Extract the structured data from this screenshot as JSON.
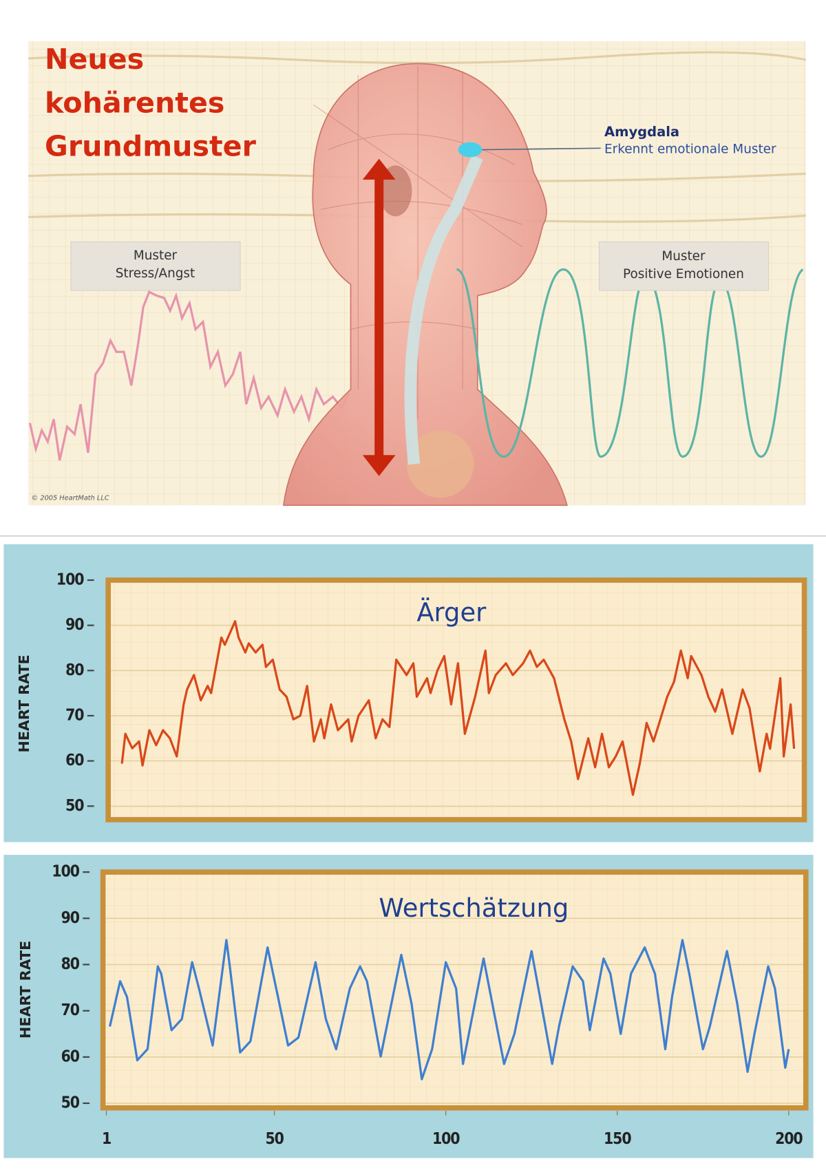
{
  "illustration": {
    "title_lines": [
      "Neues",
      "kohärentes",
      "Grundmuster"
    ],
    "amygdala": {
      "label": "Amygdala",
      "description": "Erkennt emotionale Muster"
    },
    "stress_box": [
      "Muster",
      "Stress/Angst"
    ],
    "positive_box": [
      "Muster",
      "Positive Emotionen"
    ],
    "copyright": "© 2005 HeartMath LLC"
  },
  "chart_data": [
    {
      "type": "line",
      "title": "Ärger",
      "y_label": "HEART RATE",
      "color": "#d9481a",
      "xlim": [
        0,
        203
      ],
      "ylim": [
        47,
        100
      ],
      "yticks": [
        100,
        90,
        80,
        70,
        60,
        50
      ],
      "grid": true,
      "x": [
        4,
        5,
        7,
        9,
        10,
        12,
        14,
        16,
        18,
        20,
        22,
        23,
        25,
        27,
        29,
        30,
        33,
        34,
        37,
        38,
        40,
        41,
        43,
        45,
        46,
        48,
        50,
        52,
        54,
        56,
        58,
        60,
        62,
        63,
        65,
        67,
        70,
        71,
        73,
        76,
        78,
        80,
        82,
        84,
        87,
        89,
        90,
        93,
        94,
        96,
        98,
        100,
        102,
        104,
        107,
        110,
        111,
        113,
        116,
        118,
        121,
        123,
        125,
        127,
        130,
        133,
        135,
        137,
        140,
        142,
        144,
        146,
        148,
        150,
        153,
        155,
        157,
        159,
        161,
        163,
        165,
        167,
        169,
        170,
        173,
        175,
        177,
        179,
        182,
        185,
        187,
        190,
        192,
        193,
        196,
        197,
        199,
        200
      ],
      "values": [
        59.4,
        66,
        62.8,
        64.3,
        59,
        66.8,
        63.5,
        66.8,
        65,
        61,
        72.5,
        75.8,
        79,
        73.4,
        76.6,
        75,
        87.3,
        85.7,
        90.9,
        87.3,
        84,
        86,
        84,
        85.7,
        80.8,
        82.4,
        75.8,
        74.2,
        69.2,
        70,
        76.6,
        64.3,
        69.2,
        65,
        72.5,
        66.8,
        69.2,
        64.3,
        70,
        73.4,
        65,
        69.2,
        67.5,
        82.4,
        79,
        81.6,
        74.2,
        78.3,
        75,
        80,
        83.2,
        72.5,
        81.6,
        66,
        74.2,
        84.4,
        75,
        79,
        81.6,
        79,
        81.6,
        84.4,
        80.8,
        82.4,
        78.3,
        69.2,
        64.3,
        56,
        65,
        58.6,
        66,
        58.6,
        61,
        64.3,
        52.5,
        59.4,
        68.4,
        64.3,
        69.2,
        74.2,
        77.5,
        84.4,
        78.3,
        83.2,
        79,
        74.2,
        70.9,
        75.8,
        66,
        75.8,
        71.7,
        57.7,
        66,
        62.7,
        78.3,
        61,
        72.5,
        62.7
      ]
    },
    {
      "type": "line",
      "title": "Wertschätzung",
      "y_label": "HEART RATE",
      "color": "#3f7fd0",
      "xlim": [
        0,
        205
      ],
      "ylim": [
        49,
        100
      ],
      "yticks": [
        100,
        90,
        80,
        70,
        60,
        50
      ],
      "xticks": [
        1,
        50,
        100,
        150,
        200
      ],
      "grid": true,
      "x": [
        2,
        5,
        7,
        10,
        13,
        16,
        17,
        20,
        23,
        26,
        28,
        32,
        36,
        37,
        40,
        43,
        48,
        51,
        54,
        57,
        62,
        65,
        68,
        72,
        75,
        77,
        81,
        87,
        90,
        93,
        96,
        100,
        103,
        105,
        111,
        114,
        117,
        120,
        125,
        127,
        131,
        133,
        137,
        140,
        142,
        146,
        148,
        151,
        154,
        158,
        161,
        164,
        166,
        169,
        171,
        175,
        177,
        182,
        185,
        188,
        190,
        194,
        196,
        199,
        200
      ],
      "values": [
        66.6,
        76.4,
        73,
        59.3,
        61.7,
        79.6,
        78,
        65.8,
        68.2,
        80.5,
        74.8,
        62.5,
        85.3,
        79.6,
        61,
        63.4,
        83.7,
        73.1,
        62.5,
        64.2,
        80.5,
        68.2,
        61.7,
        74.8,
        79.6,
        76.4,
        60.1,
        82.1,
        71.5,
        55.2,
        61.7,
        80.5,
        74.8,
        58.5,
        81.3,
        69.9,
        58.5,
        65,
        82.9,
        74.8,
        58.5,
        66.6,
        79.6,
        76.4,
        65.8,
        81.3,
        78,
        65,
        78,
        83.7,
        78,
        61.7,
        73.1,
        85.3,
        78,
        61.7,
        66.6,
        82.9,
        71.5,
        56.8,
        65,
        79.6,
        74.8,
        57.7,
        61.7
      ]
    }
  ]
}
